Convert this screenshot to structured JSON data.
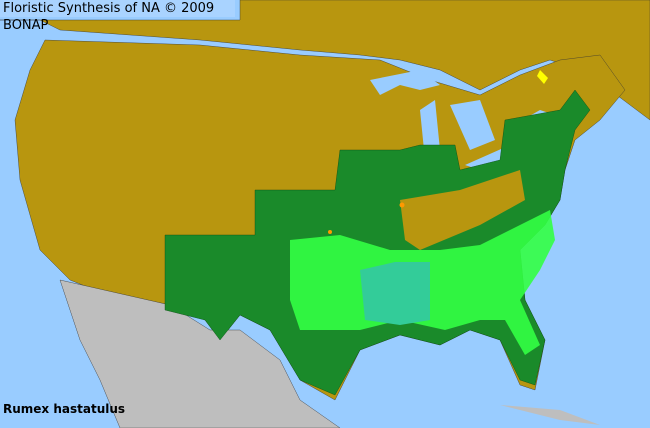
{
  "title": "Floristic Synthesis of NA © 2009 BONAP",
  "species": "Rumex hastatulus",
  "colors": {
    "water": "#99ccff",
    "no_record": "#b8960f",
    "present_state": "#1a8a2a",
    "present_county": "#33ff44",
    "rare_county": "#33cc99",
    "noxious": "#ffff00",
    "adventive": "#ff9900",
    "outside_region": "#bebebe"
  }
}
